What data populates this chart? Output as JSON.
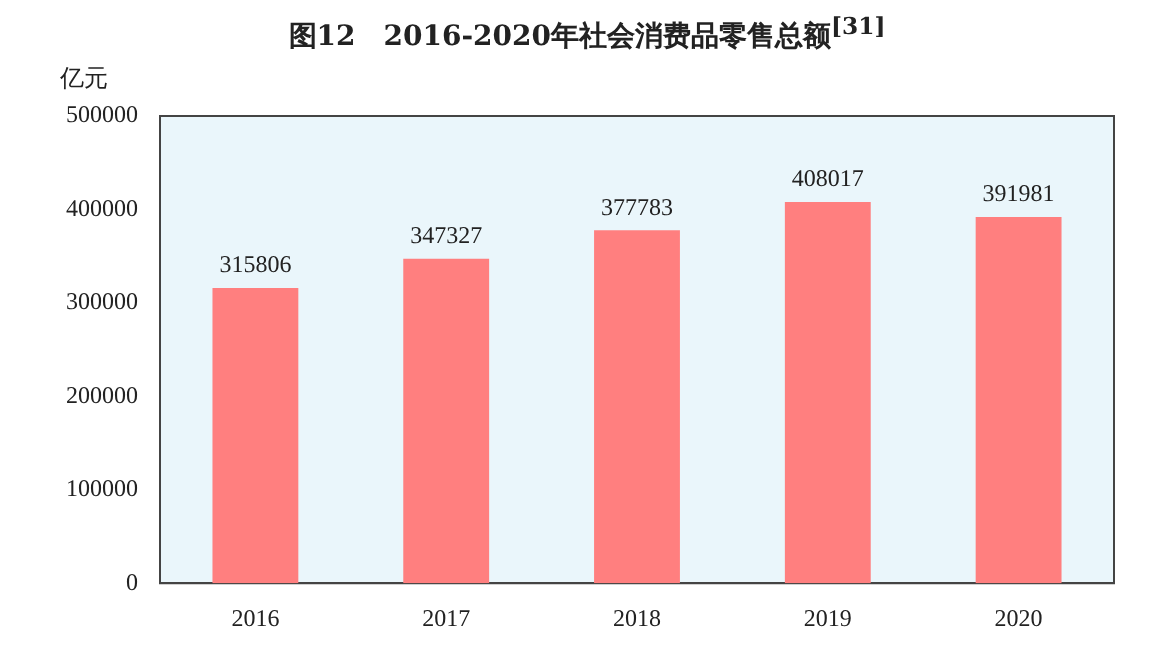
{
  "chart_data": {
    "type": "bar",
    "title": "图12　2016-2020年社会消费品零售总额$^{[31]}$",
    "ylabel": "亿元",
    "categories": [
      "2016",
      "2017",
      "2018",
      "2019",
      "2020"
    ],
    "values": [
      315806,
      347327,
      377783,
      408017,
      391981
    ],
    "color": "#ff7f7f",
    "ylim": [
      0,
      500000
    ],
    "yticks": [
      0,
      100000,
      200000,
      300000,
      400000,
      500000
    ],
    "grid": false,
    "legend": false,
    "data_labels": true
  }
}
